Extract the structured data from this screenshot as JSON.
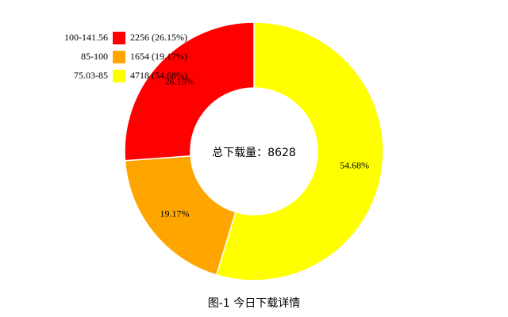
{
  "chart_data": {
    "type": "donut",
    "title": "图-1 今日下载详情",
    "center_text": "总下载量：8628",
    "categories": [
      "100-141.56",
      "85-100",
      "75.03-85"
    ],
    "values": [
      2256,
      1654,
      4718
    ],
    "value_labels": [
      "2256 (26.15%)",
      "1654 (19.17%)",
      "4718 (54.68%)"
    ],
    "percent_labels": [
      "26.15%",
      "19.17%",
      "54.68%"
    ],
    "colors": [
      "#ff0000",
      "#ffa500",
      "#ffff00"
    ]
  }
}
